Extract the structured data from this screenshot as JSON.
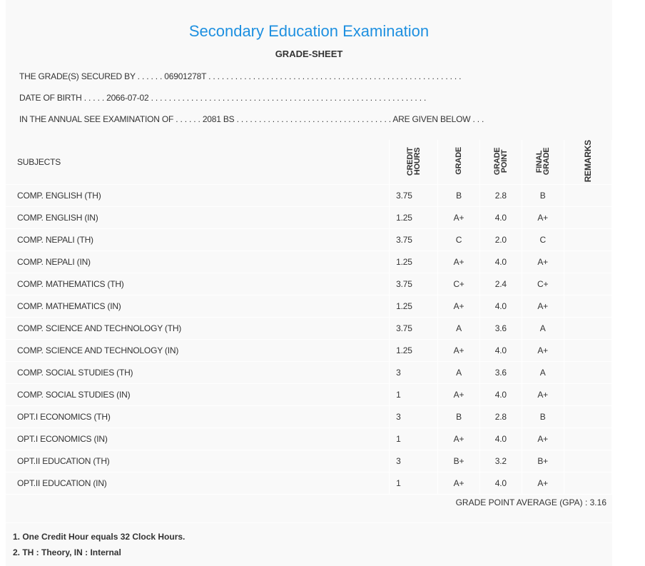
{
  "title": "Secondary Education Examination",
  "subtitle": "GRADE-SHEET",
  "info": {
    "line1": "THE GRADE(S) SECURED BY . . . . . . 06901278T . . . . . . . . . . . . . . . . . . . . . . . . . . . . . . . . . . . . . . . . . . . . . . . . . . . . . . . . .",
    "line2": "DATE OF BIRTH . . . . . 2066-07-02 . . . . . . . . . . . . . . . . . . . . . . . . . . . . . . . . . . . . . . . . . . . . . . . . . . . . . . . . . . . . . .",
    "line3": "IN THE ANNUAL SEE EXAMINATION OF . . . . . . 2081 BS . . . . . . . . . . . . . . . . . . . . . . . . . . . . . . . . . . . ARE GIVEN BELOW . . ."
  },
  "headers": {
    "subjects": "SUBJECTS",
    "credit": "CREDIT HOURS",
    "grade": "GRADE",
    "gp": "GRADE POINT",
    "final": "FINAL GRADE",
    "remarks": "REMARKS"
  },
  "rows": [
    {
      "subject": "COMP. ENGLISH (TH)",
      "credit": "3.75",
      "grade": "B",
      "gp": "2.8",
      "final": "B"
    },
    {
      "subject": "COMP. ENGLISH (IN)",
      "credit": "1.25",
      "grade": "A+",
      "gp": "4.0",
      "final": "A+"
    },
    {
      "subject": "COMP. NEPALI (TH)",
      "credit": "3.75",
      "grade": "C",
      "gp": "2.0",
      "final": "C"
    },
    {
      "subject": "COMP. NEPALI (IN)",
      "credit": "1.25",
      "grade": "A+",
      "gp": "4.0",
      "final": "A+"
    },
    {
      "subject": "COMP. MATHEMATICS (TH)",
      "credit": "3.75",
      "grade": "C+",
      "gp": "2.4",
      "final": "C+"
    },
    {
      "subject": "COMP. MATHEMATICS (IN)",
      "credit": "1.25",
      "grade": "A+",
      "gp": "4.0",
      "final": "A+"
    },
    {
      "subject": "COMP. SCIENCE AND TECHNOLOGY (TH)",
      "credit": "3.75",
      "grade": "A",
      "gp": "3.6",
      "final": "A"
    },
    {
      "subject": "COMP. SCIENCE AND TECHNOLOGY (IN)",
      "credit": "1.25",
      "grade": "A+",
      "gp": "4.0",
      "final": "A+"
    },
    {
      "subject": "COMP. SOCIAL STUDIES (TH)",
      "credit": "3",
      "grade": "A",
      "gp": "3.6",
      "final": "A"
    },
    {
      "subject": "COMP. SOCIAL STUDIES (IN)",
      "credit": "1",
      "grade": "A+",
      "gp": "4.0",
      "final": "A+"
    },
    {
      "subject": "OPT.I ECONOMICS (TH)",
      "credit": "3",
      "grade": "B",
      "gp": "2.8",
      "final": "B"
    },
    {
      "subject": "OPT.I ECONOMICS (IN)",
      "credit": "1",
      "grade": "A+",
      "gp": "4.0",
      "final": "A+"
    },
    {
      "subject": "OPT.II EDUCATION (TH)",
      "credit": "3",
      "grade": "B+",
      "gp": "3.2",
      "final": "B+"
    },
    {
      "subject": "OPT.II EDUCATION (IN)",
      "credit": "1",
      "grade": "A+",
      "gp": "4.0",
      "final": "A+"
    }
  ],
  "gpa": "GRADE POINT AVERAGE (GPA) : 3.16",
  "notes": [
    "1. One Credit Hour equals 32 Clock Hours.",
    "2. TH : Theory, IN : Internal"
  ]
}
